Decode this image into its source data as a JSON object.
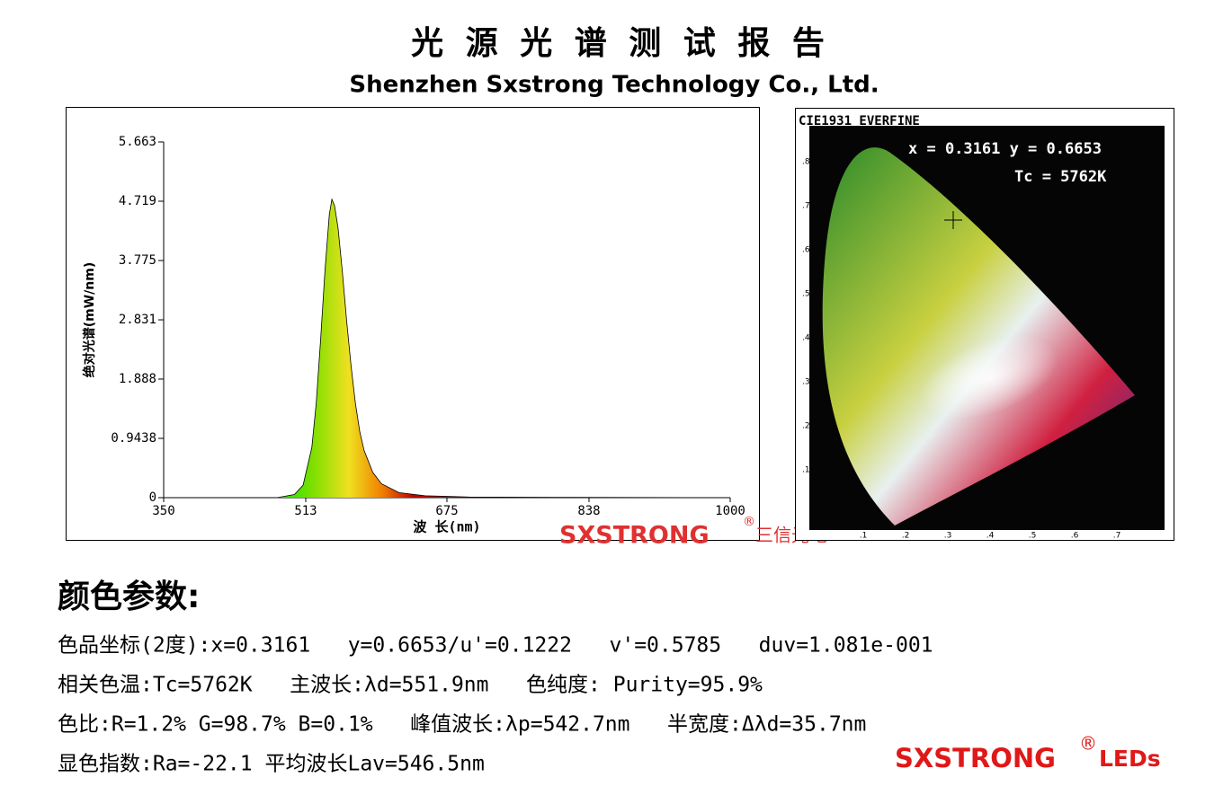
{
  "header": {
    "title": "光 源 光 谱 测 试 报 告",
    "subtitle": "Shenzhen Sxstrong Technology Co., Ltd."
  },
  "chart_data": {
    "type": "line",
    "ylabel": "绝对光谱(mW/nm)",
    "xlabel": "波 长(nm)",
    "xlim": [
      350,
      1000
    ],
    "xticks": [
      350,
      513,
      675,
      838,
      1000
    ],
    "ylim": [
      0,
      5.663
    ],
    "yticks": [
      0,
      0.9438,
      1.888,
      2.831,
      3.775,
      4.719,
      5.663
    ],
    "x": [
      350,
      480,
      500,
      510,
      520,
      525,
      530,
      535,
      540,
      543,
      546,
      550,
      555,
      560,
      565,
      570,
      575,
      580,
      590,
      600,
      620,
      650,
      700,
      800,
      1000
    ],
    "values": [
      0,
      0,
      0.05,
      0.2,
      0.8,
      1.5,
      2.5,
      3.6,
      4.5,
      4.75,
      4.65,
      4.3,
      3.6,
      2.8,
      2.1,
      1.5,
      1.05,
      0.75,
      0.4,
      0.22,
      0.08,
      0.03,
      0.01,
      0.005,
      0
    ],
    "color": "#000000"
  },
  "cie": {
    "title": "CIE1931 EVERFINE",
    "coords": "x = 0.3161 y = 0.6653",
    "tc": "Tc = 5762K",
    "bottom_labels": [
      ".1",
      ".2",
      ".3",
      ".4",
      ".5",
      ".6",
      ".7"
    ],
    "left_labels": [
      ".8",
      ".7",
      ".6",
      ".5",
      ".4",
      ".3",
      ".2",
      ".1"
    ]
  },
  "watermark": {
    "brand": "SXSTRONG",
    "mark": "®",
    "cn": "三信光电"
  },
  "section": {
    "title": "颜色参数:",
    "lines": [
      "色品坐标(2度):x=0.3161   y=0.6653/u'=0.1222   v'=0.5785   duv=1.081e-001",
      "相关色温:Tc=5762K   主波长:λd=551.9nm   色纯度: Purity=95.9%",
      "色比:R=1.2% G=98.7% B=0.1%   峰值波长:λp=542.7nm   半宽度:Δλd=35.7nm",
      "显色指数:Ra=-22.1 平均波长Lav=546.5nm"
    ]
  },
  "footer_logo": {
    "brand": "SXSTRONG",
    "mark": "®",
    "suffix": "LEDs"
  }
}
